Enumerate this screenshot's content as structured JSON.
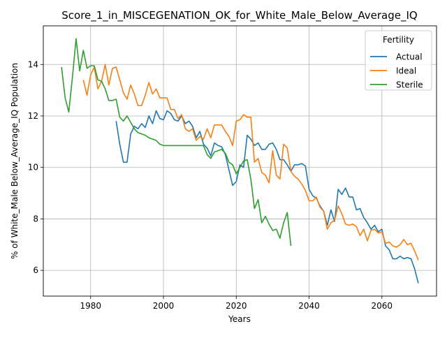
{
  "chart_data": {
    "type": "line",
    "title": "Score_1_in_MISCEGENATION_OK_for_White_Male_Below_Average_IQ",
    "xlabel": "Years",
    "ylabel": "% of White_Male Below_Average_IQ Population",
    "xlim": [
      1967,
      2075
    ],
    "ylim": [
      5.0,
      15.5
    ],
    "xticks": [
      1980,
      2000,
      2020,
      2040,
      2060
    ],
    "yticks": [
      6,
      8,
      10,
      12,
      14
    ],
    "grid": true,
    "legend": {
      "title": "Fertility",
      "position": "top-right"
    },
    "series": [
      {
        "name": "Actual",
        "color": "#1f77b4",
        "points": [
          [
            1987,
            11.8
          ],
          [
            1988,
            10.9
          ],
          [
            1989,
            10.2
          ],
          [
            1990,
            10.2
          ],
          [
            1991,
            11.3
          ],
          [
            1992,
            11.6
          ],
          [
            1993,
            11.5
          ],
          [
            1994,
            11.7
          ],
          [
            1995,
            11.55
          ],
          [
            1996,
            12.0
          ],
          [
            1997,
            11.7
          ],
          [
            1998,
            12.2
          ],
          [
            1999,
            11.9
          ],
          [
            2000,
            11.85
          ],
          [
            2001,
            12.2
          ],
          [
            2002,
            12.1
          ],
          [
            2003,
            11.85
          ],
          [
            2004,
            11.8
          ],
          [
            2005,
            12.0
          ],
          [
            2006,
            11.7
          ],
          [
            2007,
            11.8
          ],
          [
            2008,
            11.6
          ],
          [
            2009,
            11.15
          ],
          [
            2010,
            11.4
          ],
          [
            2011,
            10.9
          ],
          [
            2012,
            10.75
          ],
          [
            2013,
            10.45
          ],
          [
            2014,
            10.95
          ],
          [
            2015,
            10.85
          ],
          [
            2016,
            10.8
          ],
          [
            2017,
            10.5
          ],
          [
            2018,
            9.9
          ],
          [
            2019,
            9.3
          ],
          [
            2020,
            9.45
          ],
          [
            2021,
            10.1
          ],
          [
            2022,
            10.0
          ],
          [
            2023,
            11.25
          ],
          [
            2024,
            11.1
          ],
          [
            2025,
            10.85
          ],
          [
            2026,
            10.95
          ],
          [
            2027,
            10.7
          ],
          [
            2028,
            10.7
          ],
          [
            2029,
            10.9
          ],
          [
            2030,
            10.95
          ],
          [
            2031,
            10.7
          ],
          [
            2032,
            10.3
          ],
          [
            2033,
            10.3
          ],
          [
            2034,
            10.1
          ],
          [
            2035,
            9.85
          ],
          [
            2036,
            10.1
          ],
          [
            2037,
            10.1
          ],
          [
            2038,
            10.15
          ],
          [
            2039,
            10.05
          ],
          [
            2040,
            9.15
          ],
          [
            2041,
            8.9
          ],
          [
            2042,
            8.8
          ],
          [
            2043,
            8.5
          ],
          [
            2044,
            8.3
          ],
          [
            2045,
            7.75
          ],
          [
            2046,
            8.35
          ],
          [
            2047,
            7.9
          ],
          [
            2048,
            9.15
          ],
          [
            2049,
            8.95
          ],
          [
            2050,
            9.2
          ],
          [
            2051,
            8.85
          ],
          [
            2052,
            8.85
          ],
          [
            2053,
            8.35
          ],
          [
            2054,
            8.4
          ],
          [
            2055,
            8.05
          ],
          [
            2056,
            7.85
          ],
          [
            2057,
            7.6
          ],
          [
            2058,
            7.75
          ],
          [
            2059,
            7.5
          ],
          [
            2060,
            7.6
          ],
          [
            2061,
            6.95
          ],
          [
            2062,
            6.8
          ],
          [
            2063,
            6.45
          ],
          [
            2064,
            6.45
          ],
          [
            2065,
            6.55
          ],
          [
            2066,
            6.45
          ],
          [
            2067,
            6.5
          ],
          [
            2068,
            6.45
          ],
          [
            2069,
            6.05
          ],
          [
            2070,
            5.5
          ]
        ]
      },
      {
        "name": "Ideal",
        "color": "#ff7f0e",
        "points": [
          [
            1978,
            13.4
          ],
          [
            1979,
            12.8
          ],
          [
            1980,
            13.6
          ],
          [
            1981,
            13.9
          ],
          [
            1982,
            13.05
          ],
          [
            1983,
            13.35
          ],
          [
            1984,
            14.0
          ],
          [
            1985,
            13.2
          ],
          [
            1986,
            13.85
          ],
          [
            1987,
            13.9
          ],
          [
            1988,
            13.4
          ],
          [
            1989,
            12.9
          ],
          [
            1990,
            12.65
          ],
          [
            1991,
            13.2
          ],
          [
            1992,
            12.85
          ],
          [
            1993,
            12.4
          ],
          [
            1994,
            12.4
          ],
          [
            1995,
            12.8
          ],
          [
            1996,
            13.3
          ],
          [
            1997,
            12.85
          ],
          [
            1998,
            13.05
          ],
          [
            1999,
            12.7
          ],
          [
            2000,
            12.7
          ],
          [
            2001,
            12.7
          ],
          [
            2002,
            12.25
          ],
          [
            2003,
            12.25
          ],
          [
            2004,
            11.9
          ],
          [
            2005,
            12.05
          ],
          [
            2006,
            11.5
          ],
          [
            2007,
            11.4
          ],
          [
            2008,
            11.5
          ],
          [
            2009,
            11.05
          ],
          [
            2010,
            11.2
          ],
          [
            2011,
            11.1
          ],
          [
            2012,
            11.5
          ],
          [
            2013,
            11.15
          ],
          [
            2014,
            11.65
          ],
          [
            2015,
            11.65
          ],
          [
            2016,
            11.65
          ],
          [
            2017,
            11.4
          ],
          [
            2018,
            11.2
          ],
          [
            2019,
            10.85
          ],
          [
            2020,
            11.8
          ],
          [
            2021,
            11.85
          ],
          [
            2022,
            12.05
          ],
          [
            2023,
            11.95
          ],
          [
            2024,
            11.95
          ],
          [
            2025,
            10.2
          ],
          [
            2026,
            10.35
          ],
          [
            2027,
            9.8
          ],
          [
            2028,
            9.7
          ],
          [
            2029,
            9.4
          ],
          [
            2030,
            10.65
          ],
          [
            2031,
            9.7
          ],
          [
            2032,
            9.55
          ],
          [
            2033,
            10.9
          ],
          [
            2034,
            10.75
          ],
          [
            2035,
            9.85
          ],
          [
            2036,
            9.65
          ],
          [
            2037,
            9.55
          ],
          [
            2038,
            9.35
          ],
          [
            2039,
            9.1
          ],
          [
            2040,
            8.7
          ],
          [
            2041,
            8.7
          ],
          [
            2042,
            8.85
          ],
          [
            2043,
            8.45
          ],
          [
            2044,
            8.3
          ],
          [
            2045,
            7.6
          ],
          [
            2046,
            7.85
          ],
          [
            2047,
            7.95
          ],
          [
            2048,
            8.5
          ],
          [
            2049,
            8.2
          ],
          [
            2050,
            7.8
          ],
          [
            2051,
            7.75
          ],
          [
            2052,
            7.8
          ],
          [
            2053,
            7.7
          ],
          [
            2054,
            7.35
          ],
          [
            2055,
            7.6
          ],
          [
            2056,
            7.15
          ],
          [
            2057,
            7.55
          ],
          [
            2058,
            7.6
          ],
          [
            2059,
            7.45
          ],
          [
            2060,
            7.5
          ],
          [
            2061,
            7.05
          ],
          [
            2062,
            7.1
          ],
          [
            2063,
            6.95
          ],
          [
            2064,
            6.9
          ],
          [
            2065,
            7.0
          ],
          [
            2066,
            7.2
          ],
          [
            2067,
            7.0
          ],
          [
            2068,
            7.05
          ],
          [
            2069,
            6.75
          ],
          [
            2070,
            6.4
          ]
        ]
      },
      {
        "name": "Sterile",
        "color": "#2ca02c",
        "points": [
          [
            1972,
            13.9
          ],
          [
            1973,
            12.7
          ],
          [
            1974,
            12.15
          ],
          [
            1975,
            13.5
          ],
          [
            1976,
            15.0
          ],
          [
            1977,
            13.75
          ],
          [
            1978,
            14.55
          ],
          [
            1979,
            13.85
          ],
          [
            1980,
            13.95
          ],
          [
            1981,
            13.95
          ],
          [
            1982,
            13.4
          ],
          [
            1983,
            13.35
          ],
          [
            1984,
            13.05
          ],
          [
            1985,
            12.6
          ],
          [
            1986,
            12.6
          ],
          [
            1987,
            12.65
          ],
          [
            1988,
            11.95
          ],
          [
            1989,
            11.8
          ],
          [
            1990,
            12.0
          ],
          [
            1991,
            11.75
          ],
          [
            1992,
            11.5
          ],
          [
            1993,
            11.35
          ],
          [
            1994,
            11.3
          ],
          [
            1995,
            11.25
          ],
          [
            1996,
            11.15
          ],
          [
            1997,
            11.1
          ],
          [
            1998,
            11.05
          ],
          [
            1999,
            10.9
          ],
          [
            2000,
            10.85
          ],
          [
            2001,
            10.85
          ],
          [
            2002,
            10.85
          ],
          [
            2003,
            10.85
          ],
          [
            2004,
            10.85
          ],
          [
            2005,
            10.85
          ],
          [
            2006,
            10.85
          ],
          [
            2007,
            10.85
          ],
          [
            2008,
            10.85
          ],
          [
            2009,
            10.85
          ],
          [
            2010,
            10.85
          ],
          [
            2011,
            10.85
          ],
          [
            2012,
            10.5
          ],
          [
            2013,
            10.35
          ],
          [
            2014,
            10.6
          ],
          [
            2015,
            10.65
          ],
          [
            2016,
            10.7
          ],
          [
            2017,
            10.55
          ],
          [
            2018,
            10.2
          ],
          [
            2019,
            10.1
          ],
          [
            2020,
            9.75
          ],
          [
            2021,
            10.0
          ],
          [
            2022,
            10.25
          ],
          [
            2023,
            10.3
          ],
          [
            2024,
            9.55
          ],
          [
            2025,
            8.4
          ],
          [
            2026,
            8.75
          ],
          [
            2027,
            7.85
          ],
          [
            2028,
            8.1
          ],
          [
            2029,
            7.8
          ],
          [
            2030,
            7.55
          ],
          [
            2031,
            7.6
          ],
          [
            2032,
            7.25
          ],
          [
            2033,
            7.85
          ],
          [
            2034,
            8.25
          ],
          [
            2035,
            6.95
          ]
        ]
      }
    ]
  }
}
